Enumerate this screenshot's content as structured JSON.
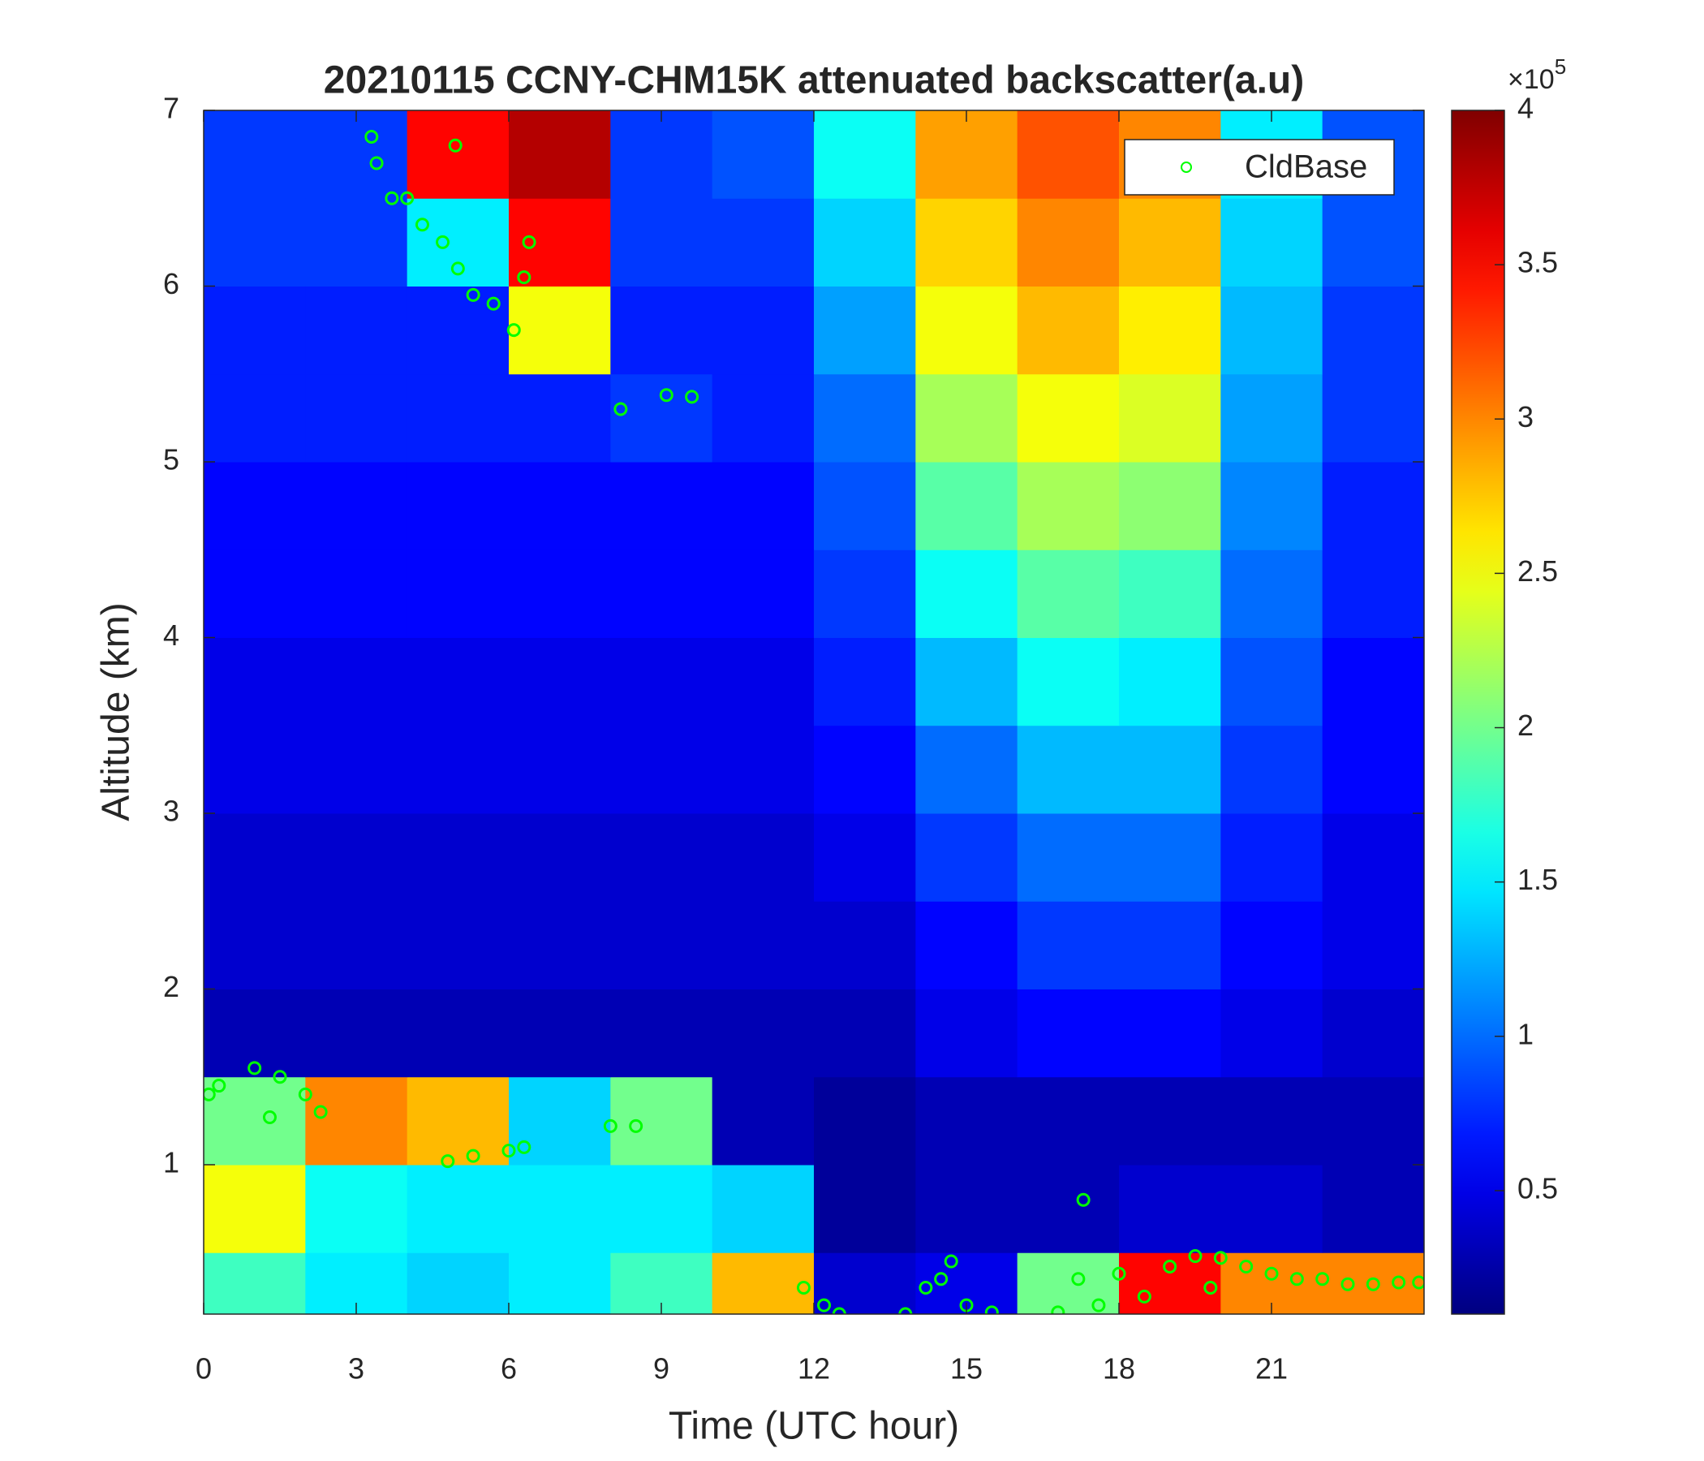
{
  "chart_data": {
    "type": "heatmap",
    "title": "20210115 CCNY-CHM15K attenuated backscatter(a.u)",
    "xlabel": "Time (UTC hour)",
    "ylabel": "Altitude (km)",
    "xlim": [
      0,
      24
    ],
    "xticks": [
      0,
      3,
      6,
      9,
      12,
      15,
      18,
      21
    ],
    "ylim": [
      0.15,
      7
    ],
    "yticks": [
      1,
      2,
      3,
      4,
      5,
      6,
      7
    ],
    "colormap": "jet",
    "clim": [
      0.1,
      4
    ],
    "cticks": [
      0.5,
      1,
      1.5,
      2,
      2.5,
      3,
      3.5,
      4
    ],
    "colorbar_multiplier": "×10",
    "colorbar_exponent": "5",
    "legend_position": "upper right",
    "heatmap": {
      "x": [
        1,
        3,
        5,
        7,
        9,
        11,
        13,
        15,
        17,
        19,
        21,
        23
      ],
      "y": [
        0.25,
        0.75,
        1.25,
        1.75,
        2.25,
        2.75,
        3.25,
        3.75,
        4.25,
        4.75,
        5.25,
        5.75,
        6.25,
        6.75
      ],
      "z": [
        [
          1.8,
          1.5,
          1.4,
          1.5,
          1.8,
          2.8,
          0.4,
          0.5,
          2,
          3.5,
          3,
          3
        ],
        [
          2.5,
          1.6,
          1.5,
          1.5,
          1.5,
          1.4,
          0.2,
          0.3,
          0.3,
          0.4,
          0.4,
          0.3
        ],
        [
          2,
          3,
          2.8,
          1.4,
          2,
          0.3,
          0.2,
          0.3,
          0.3,
          0.3,
          0.3,
          0.3
        ],
        [
          0.3,
          0.3,
          0.3,
          0.3,
          0.3,
          0.3,
          0.3,
          0.5,
          0.6,
          0.6,
          0.5,
          0.4
        ],
        [
          0.4,
          0.4,
          0.4,
          0.4,
          0.4,
          0.4,
          0.4,
          0.6,
          0.8,
          0.8,
          0.6,
          0.5
        ],
        [
          0.4,
          0.4,
          0.4,
          0.4,
          0.4,
          0.4,
          0.5,
          0.8,
          1,
          1,
          0.7,
          0.5
        ],
        [
          0.5,
          0.5,
          0.5,
          0.5,
          0.5,
          0.5,
          0.6,
          1,
          1.3,
          1.3,
          0.8,
          0.6
        ],
        [
          0.5,
          0.5,
          0.5,
          0.5,
          0.5,
          0.5,
          0.7,
          1.3,
          1.6,
          1.5,
          0.9,
          0.6
        ],
        [
          0.6,
          0.6,
          0.6,
          0.6,
          0.6,
          0.6,
          0.8,
          1.6,
          1.9,
          1.8,
          1,
          0.7
        ],
        [
          0.6,
          0.6,
          0.6,
          0.6,
          0.6,
          0.6,
          0.9,
          1.9,
          2.2,
          2.1,
          1.1,
          0.7
        ],
        [
          0.7,
          0.7,
          0.7,
          0.7,
          0.8,
          0.7,
          1,
          2.2,
          2.5,
          2.4,
          1.2,
          0.8
        ],
        [
          0.7,
          0.7,
          0.7,
          2.5,
          0.7,
          0.7,
          1.2,
          2.5,
          2.8,
          2.6,
          1.3,
          0.8
        ],
        [
          0.8,
          0.8,
          1.5,
          3.5,
          0.8,
          0.8,
          1.4,
          2.7,
          3,
          2.8,
          1.4,
          0.9
        ],
        [
          0.8,
          0.8,
          3.5,
          3.8,
          0.8,
          0.9,
          1.6,
          2.9,
          3.2,
          3,
          1.5,
          0.9
        ]
      ]
    },
    "series": [
      {
        "name": "CldBase",
        "color": "#00ff00",
        "x": [
          0.1,
          0.3,
          1,
          1.5,
          2,
          2.3,
          1.3,
          3.3,
          3.4,
          3.7,
          4,
          4.3,
          4.7,
          5,
          5.3,
          5.7,
          6.1,
          6.3,
          6.4,
          4.95,
          8.2,
          9.1,
          9.6,
          4.8,
          5.3,
          6,
          6.3,
          8,
          8.5,
          11.8,
          12.2,
          12.5,
          13.8,
          14.2,
          14.5,
          14.7,
          15,
          15.5,
          16.8,
          17.2,
          17.3,
          17.6,
          18,
          18.5,
          19,
          19.5,
          19.8,
          20,
          20.5,
          21,
          21.5,
          22,
          22.5,
          23,
          23.5,
          23.9
        ],
        "y": [
          1.4,
          1.45,
          1.55,
          1.5,
          1.4,
          1.3,
          1.27,
          6.85,
          6.7,
          6.5,
          6.5,
          6.35,
          6.25,
          6.1,
          5.95,
          5.9,
          5.75,
          6.05,
          6.25,
          6.8,
          5.3,
          5.38,
          5.37,
          1.02,
          1.05,
          1.08,
          1.1,
          1.22,
          1.22,
          0.3,
          0.2,
          0.15,
          0.15,
          0.3,
          0.35,
          0.45,
          0.2,
          0.16,
          0.16,
          0.35,
          0.8,
          0.2,
          0.38,
          0.25,
          0.42,
          0.48,
          0.3,
          0.47,
          0.42,
          0.38,
          0.35,
          0.35,
          0.32,
          0.32,
          0.33,
          0.33
        ]
      }
    ]
  }
}
